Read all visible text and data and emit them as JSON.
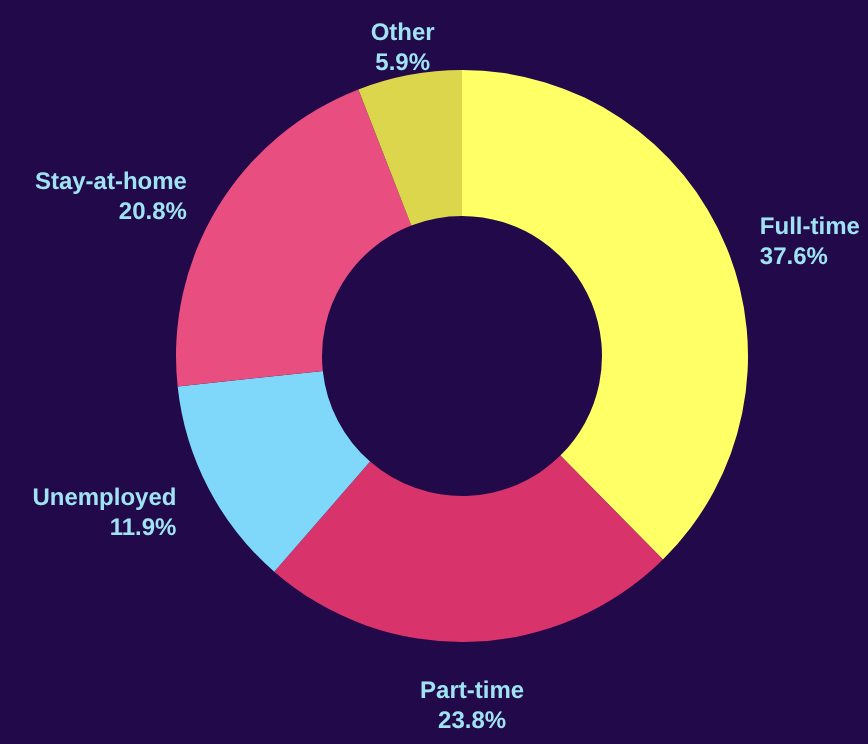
{
  "chart_data": {
    "type": "donut",
    "categories": [
      "Full-time",
      "Part-time",
      "Unemployed",
      "Stay-at-home",
      "Other"
    ],
    "values": [
      37.6,
      23.8,
      11.9,
      20.8,
      5.9
    ],
    "colors": [
      "#ffff66",
      "#d9336b",
      "#7fd8fa",
      "#e84f80",
      "#dcd64c"
    ],
    "value_labels": [
      "37.6%",
      "23.8%",
      "11.9%",
      "20.8%",
      "5.9%"
    ]
  }
}
